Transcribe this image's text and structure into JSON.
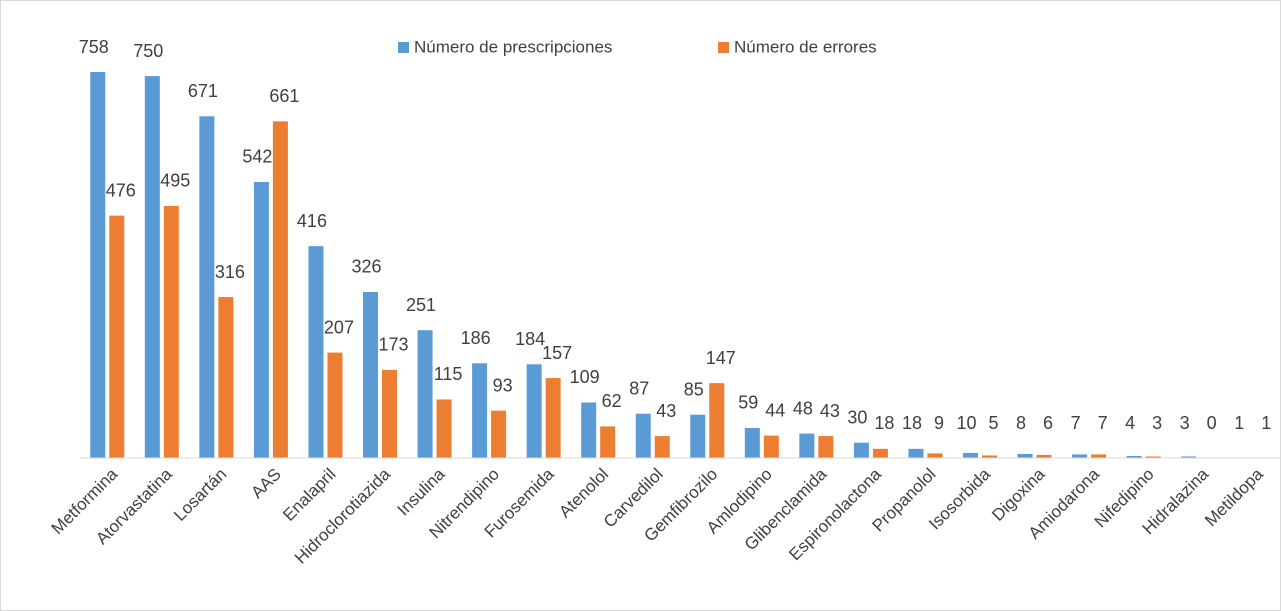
{
  "chart_data": {
    "type": "bar",
    "categories": [
      "Metformina",
      "Atorvastatina",
      "Losartán",
      "AAS",
      "Enalapril",
      "Hidroclorotiazida",
      "Insulina",
      "Nitrendipino",
      "Furosemida",
      "Atenolol",
      "Carvedilol",
      "Gemfibrozilo",
      "Amlodipino",
      "Glibenclamida",
      "Espironolactona",
      "Propanolol",
      "Isosorbida",
      "Digoxina",
      "Amiodarona",
      "Nifedipino",
      "Hidralazina",
      "Metildopa"
    ],
    "series": [
      {
        "name": "Número de prescripciones",
        "color": "#5b9bd5",
        "values": [
          758,
          750,
          671,
          542,
          416,
          326,
          251,
          186,
          184,
          109,
          87,
          85,
          59,
          48,
          30,
          18,
          10,
          8,
          7,
          4,
          3,
          1
        ]
      },
      {
        "name": "Número de errores",
        "color": "#ed7d31",
        "values": [
          476,
          495,
          316,
          661,
          207,
          173,
          115,
          93,
          157,
          62,
          43,
          147,
          44,
          43,
          18,
          9,
          5,
          6,
          7,
          3,
          0,
          1
        ]
      }
    ],
    "legend": "top"
  }
}
